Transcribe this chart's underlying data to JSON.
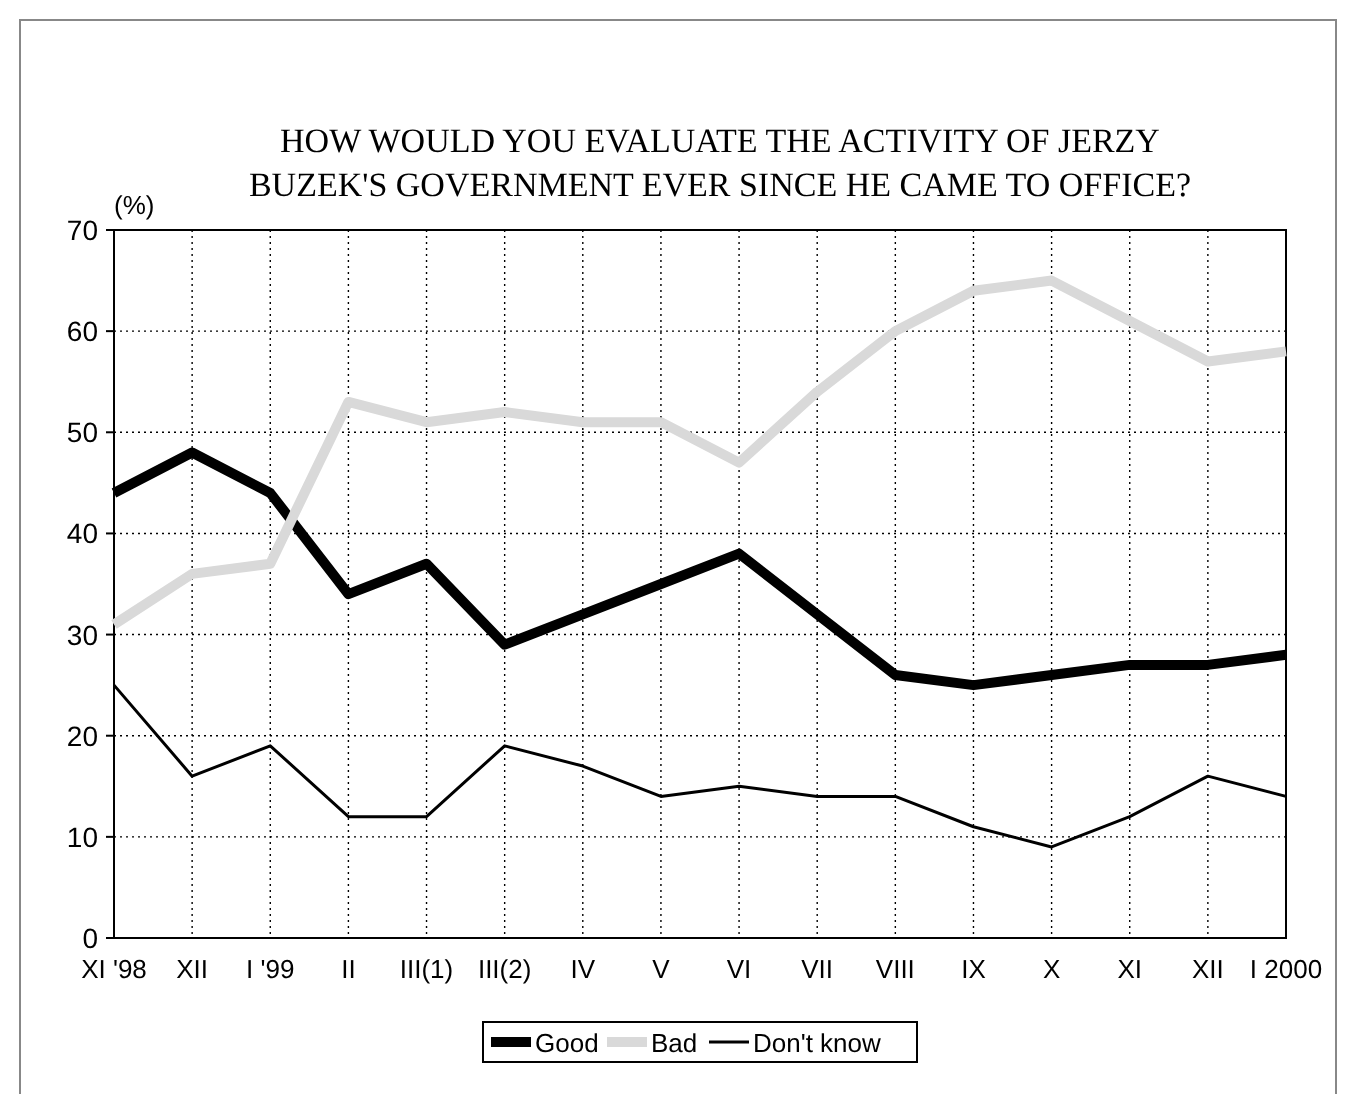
{
  "chart_data": {
    "type": "line",
    "title": "HOW WOULD YOU EVALUATE THE ACTIVITY OF JERZY BUZEK'S GOVERNMENT EVER SINCE HE CAME TO OFFICE?",
    "ylabel": "(%)",
    "categories": [
      "XI '98",
      "XII",
      "I '99",
      "II",
      "III(1)",
      "III(2)",
      "IV",
      "V",
      "VI",
      "VII",
      "VIII",
      "IX",
      "X",
      "XI",
      "XII",
      "I 2000"
    ],
    "series": [
      {
        "name": "Good",
        "color": "#000000",
        "values": [
          44,
          48,
          44,
          34,
          37,
          29,
          32,
          35,
          38,
          32,
          26,
          25,
          26,
          27,
          27,
          28
        ]
      },
      {
        "name": "Bad",
        "color": "#d9d9d9",
        "values": [
          31,
          36,
          37,
          53,
          51,
          52,
          51,
          51,
          47,
          54,
          60,
          64,
          65,
          61,
          57,
          58
        ]
      },
      {
        "name": "Don't know",
        "color": "#000000",
        "values": [
          25,
          16,
          19,
          12,
          12,
          19,
          17,
          14,
          15,
          14,
          14,
          11,
          9,
          12,
          16,
          14
        ]
      }
    ],
    "ylim": [
      0,
      70
    ],
    "yticks": [
      0,
      10,
      20,
      30,
      40,
      50,
      60,
      70
    ],
    "grid": true,
    "legend": "bottom",
    "marker": "none",
    "line_style": "solid"
  }
}
